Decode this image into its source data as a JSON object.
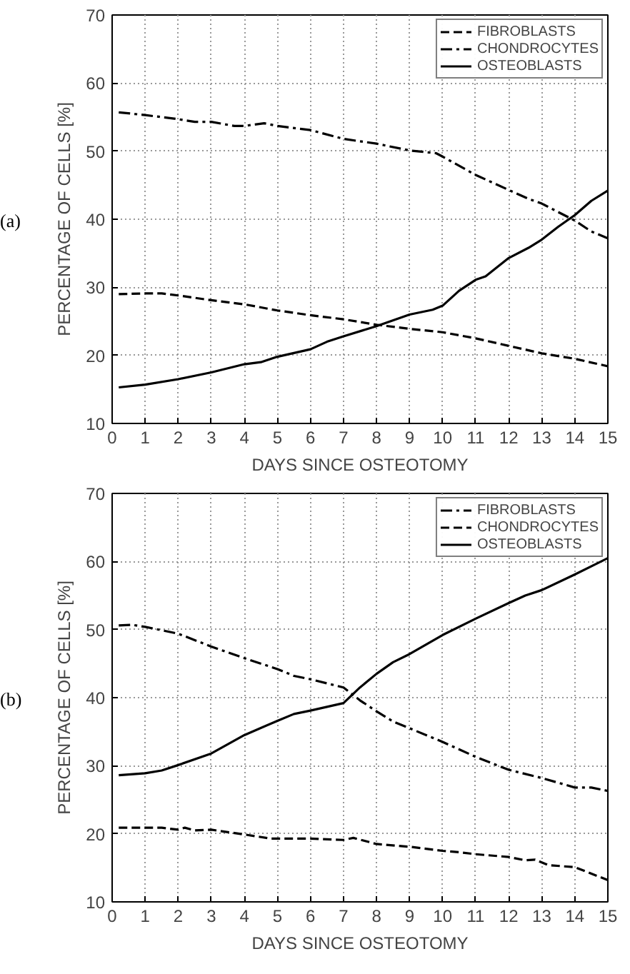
{
  "chart_data": [
    {
      "type": "line",
      "xlabel": "DAYS SINCE OSTEOTOMY",
      "ylabel": "PERCENTAGE OF CELLS [%]",
      "annotations": [
        "(a)"
      ],
      "xlim": [
        0,
        15
      ],
      "ylim": [
        10,
        70
      ],
      "xticks": [
        0,
        1,
        2,
        3,
        4,
        5,
        6,
        7,
        8,
        9,
        10,
        11,
        12,
        13,
        14,
        15
      ],
      "yticks": [
        10,
        20,
        30,
        40,
        50,
        60,
        70
      ],
      "grid": true,
      "legend": "top right",
      "series": [
        {
          "name": "FIBROBLASTS",
          "color": "#000000",
          "line_style": "dashed",
          "x": [
            0.2,
            1,
            1.5,
            2,
            3,
            4,
            5,
            6,
            7,
            8,
            9,
            10,
            11,
            12,
            13,
            14,
            15
          ],
          "values": [
            29,
            29.1,
            29.1,
            28.8,
            28.1,
            27.5,
            26.6,
            25.9,
            25.3,
            24.5,
            23.9,
            23.4,
            22.5,
            21.4,
            20.3,
            19.5,
            18.4
          ]
        },
        {
          "name": "CHONDROCYTES",
          "color": "#000000",
          "line_style": "dashdot",
          "x": [
            0.2,
            1,
            2,
            2.5,
            3,
            3.7,
            4,
            4.6,
            5,
            6,
            7,
            8,
            9,
            9.8,
            10,
            11,
            12,
            12.6,
            13,
            14,
            14.5,
            15
          ],
          "values": [
            55.7,
            55.3,
            54.7,
            54.3,
            54.3,
            53.7,
            53.7,
            54.1,
            53.7,
            53.1,
            51.8,
            51.1,
            50.1,
            49.7,
            49.2,
            46.5,
            44.3,
            43,
            42.3,
            39.8,
            38.2,
            37.2
          ]
        },
        {
          "name": "OSTEOBLASTS",
          "color": "#000000",
          "line_style": "solid",
          "x": [
            0.2,
            1,
            2,
            3,
            4,
            4.5,
            5,
            6,
            6.5,
            7,
            8,
            9,
            9.7,
            10,
            10.5,
            11,
            11.3,
            12,
            12.6,
            13,
            13.5,
            14,
            14.5,
            15
          ],
          "values": [
            15.3,
            15.7,
            16.5,
            17.5,
            18.7,
            19,
            19.8,
            20.9,
            22,
            22.8,
            24.3,
            26,
            26.7,
            27.3,
            29.5,
            31.1,
            31.6,
            34.3,
            35.8,
            37,
            38.9,
            40.6,
            42.7,
            44.2
          ]
        }
      ]
    },
    {
      "type": "line",
      "xlabel": "DAYS SINCE OSTEOTOMY",
      "ylabel": "PERCENTAGE OF CELLS [%]",
      "annotations": [
        "(b)"
      ],
      "xlim": [
        0,
        15
      ],
      "ylim": [
        10,
        70
      ],
      "xticks": [
        0,
        1,
        2,
        3,
        4,
        5,
        6,
        7,
        8,
        9,
        10,
        11,
        12,
        13,
        14,
        15
      ],
      "yticks": [
        10,
        20,
        30,
        40,
        50,
        60,
        70
      ],
      "grid": true,
      "legend": "top right",
      "series": [
        {
          "name": "FIBROBLASTS",
          "color": "#000000",
          "line_style": "dashdot",
          "x": [
            0.2,
            0.6,
            1,
            2,
            3,
            4,
            5,
            5.5,
            6,
            7,
            7.5,
            8,
            8.5,
            9,
            10,
            11,
            12,
            13,
            14,
            14.5,
            15
          ],
          "values": [
            50.6,
            50.7,
            50.4,
            49.4,
            47.5,
            45.8,
            44.2,
            43.2,
            42.7,
            41.5,
            39.6,
            38,
            36.5,
            35.5,
            33.5,
            31.3,
            29.4,
            28.2,
            26.8,
            26.8,
            26.3
          ]
        },
        {
          "name": "CHONDROCYTES",
          "color": "#000000",
          "line_style": "dashed",
          "x": [
            0.2,
            1,
            1.5,
            2,
            2.2,
            2.5,
            3,
            4,
            4.8,
            5.5,
            6,
            7,
            7.3,
            8,
            9,
            10,
            10.5,
            11,
            12,
            12.5,
            12.8,
            13.2,
            14,
            15
          ],
          "values": [
            20.9,
            20.9,
            20.9,
            20.6,
            20.9,
            20.5,
            20.6,
            19.9,
            19.3,
            19.3,
            19.3,
            19.1,
            19.4,
            18.5,
            18.1,
            17.5,
            17.3,
            17,
            16.6,
            16.1,
            16.2,
            15.4,
            15.1,
            13.2
          ]
        },
        {
          "name": "OSTEOBLASTS",
          "color": "#000000",
          "line_style": "solid",
          "x": [
            0.2,
            1,
            1.5,
            2,
            3,
            4,
            5,
            5.5,
            6,
            7,
            7.5,
            8,
            8.5,
            9,
            10,
            11,
            12,
            12.5,
            13,
            14,
            15
          ],
          "values": [
            28.6,
            28.9,
            29.3,
            30.1,
            31.8,
            34.5,
            36.6,
            37.6,
            38.1,
            39.2,
            41.5,
            43.5,
            45.2,
            46.4,
            49.2,
            51.6,
            53.9,
            55,
            55.8,
            58.1,
            60.5
          ]
        }
      ]
    }
  ]
}
